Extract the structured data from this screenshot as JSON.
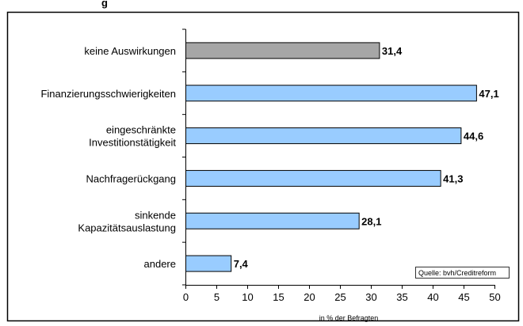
{
  "chart_data": {
    "type": "bar",
    "orientation": "horizontal",
    "title_fragment": "g",
    "categories": [
      "keine Auswirkungen",
      "Finanzierungsschwierigkeiten",
      "eingeschränkte\nInvestitionstätigkeit",
      "Nachfragerückgang",
      "sinkende\nKapazitätsauslastung",
      "andere"
    ],
    "values": [
      31.4,
      47.1,
      44.6,
      41.3,
      28.1,
      7.4
    ],
    "value_labels": [
      "31,4",
      "47,1",
      "44,6",
      "41,3",
      "28,1",
      "7,4"
    ],
    "bar_colors": [
      "#a6a6a6",
      "#99ccff",
      "#99ccff",
      "#99ccff",
      "#99ccff",
      "#99ccff"
    ],
    "xlabel": "in % der Befragten",
    "xlim": [
      0,
      50
    ],
    "xticks": [
      0,
      5,
      10,
      15,
      20,
      25,
      30,
      35,
      40,
      45,
      50
    ],
    "source": "Quelle: bvh/Creditreform",
    "grid": false
  }
}
